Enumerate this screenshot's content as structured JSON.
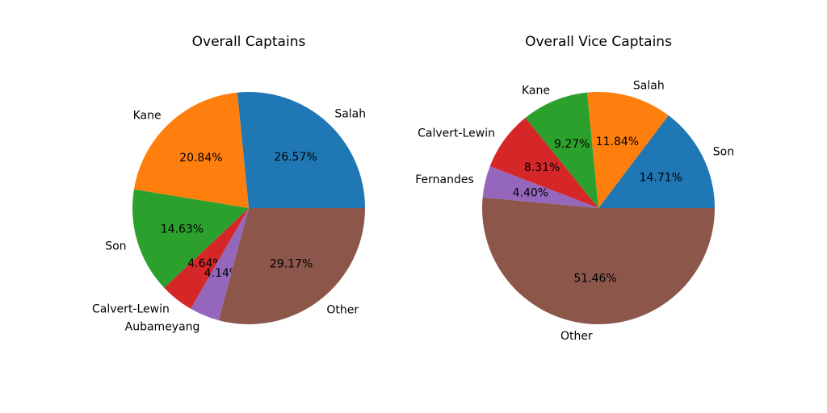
{
  "chart_data": [
    {
      "type": "pie",
      "title": "Overall Captains",
      "slices": [
        {
          "label": "Salah",
          "value": 26.57,
          "pct_label": "26.57%",
          "color": "#1f77b4"
        },
        {
          "label": "Kane",
          "value": 20.84,
          "pct_label": "20.84%",
          "color": "#ff7f0e"
        },
        {
          "label": "Son",
          "value": 14.63,
          "pct_label": "14.63%",
          "color": "#2ca02c"
        },
        {
          "label": "Calvert-Lewin",
          "value": 4.64,
          "pct_label": "4.64%",
          "color": "#d62728"
        },
        {
          "label": "Aubameyang",
          "value": 4.14,
          "pct_label": "4.14%",
          "color": "#9467bd"
        },
        {
          "label": "Other",
          "value": 29.17,
          "pct_label": "29.17%",
          "color": "#8c564b"
        }
      ]
    },
    {
      "type": "pie",
      "title": "Overall Vice Captains",
      "slices": [
        {
          "label": "Son",
          "value": 14.71,
          "pct_label": "14.71%",
          "color": "#1f77b4"
        },
        {
          "label": "Salah",
          "value": 11.84,
          "pct_label": "11.84%",
          "color": "#ff7f0e"
        },
        {
          "label": "Kane",
          "value": 9.27,
          "pct_label": "9.27%",
          "color": "#2ca02c"
        },
        {
          "label": "Calvert-Lewin",
          "value": 8.31,
          "pct_label": "8.31%",
          "color": "#d62728"
        },
        {
          "label": "Fernandes",
          "value": 4.4,
          "pct_label": "4.40%",
          "color": "#9467bd"
        },
        {
          "label": "Other",
          "value": 51.46,
          "pct_label": "51.46%",
          "color": "#8c564b"
        }
      ]
    }
  ]
}
